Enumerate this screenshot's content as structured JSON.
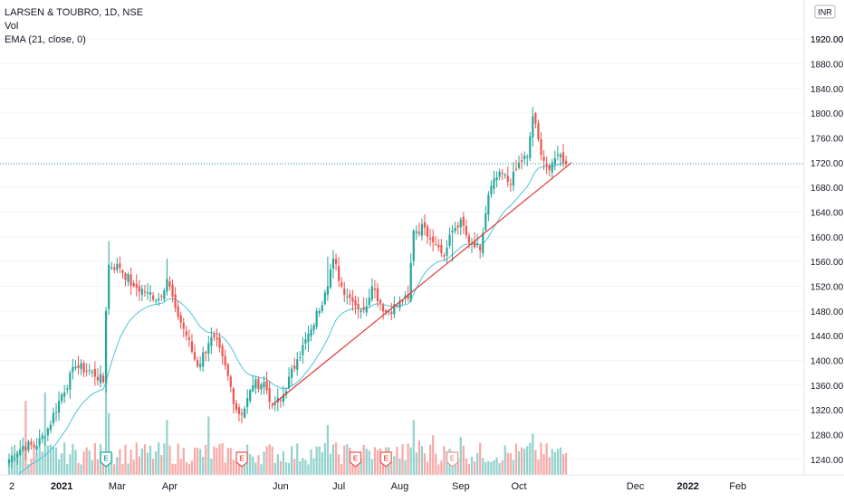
{
  "legend": {
    "title": "LARSEN & TOUBRO, 1D, NSE",
    "volume": "Vol",
    "ema": "EMA (21, close, 0)"
  },
  "currency": "INR",
  "colors": {
    "up": "#26a69a",
    "down": "#ef5350",
    "ema": "#4dc6d6",
    "trendline": "#e53935",
    "last_price_line": "#26a69a",
    "grid": "#f0f3fa",
    "axis_text": "#131722"
  },
  "chart_data": {
    "type": "candlestick",
    "symbol": "LARSEN & TOUBRO",
    "interval": "1D",
    "exchange": "NSE",
    "y_axis": {
      "range": [
        1215,
        1983
      ],
      "ticks": [
        1240,
        1280,
        1320,
        1360,
        1400,
        1440,
        1480,
        1520,
        1560,
        1600,
        1640,
        1680,
        1720,
        1760,
        1800,
        1840,
        1880,
        1920
      ],
      "tick_labels": [
        "1240.00",
        "1280.00",
        "1320.00",
        "1360.00",
        "1400.00",
        "1440.00",
        "1480.00",
        "1520.00",
        "1560.00",
        "1600.00",
        "1640.00",
        "1680.00",
        "1720.00",
        "1760.00",
        "1800.00",
        "1840.00",
        "1880.00",
        "1920.00"
      ]
    },
    "x_axis": {
      "labels": [
        "2",
        "2021",
        "Mar",
        "Apr",
        "Jun",
        "Jul",
        "Aug",
        "Sep",
        "Oct",
        "Dec",
        "2022",
        "Feb"
      ],
      "label_day_index": [
        1,
        19,
        39,
        58,
        98,
        119,
        141,
        163,
        184,
        226,
        245,
        263
      ]
    },
    "last_price": 1718.0,
    "keypoints": [
      [
        0,
        1240
      ],
      [
        5,
        1262
      ],
      [
        10,
        1262
      ],
      [
        14,
        1290
      ],
      [
        19,
        1345
      ],
      [
        24,
        1390
      ],
      [
        30,
        1382
      ],
      [
        34,
        1365
      ],
      [
        35,
        1480
      ],
      [
        36,
        1555
      ],
      [
        40,
        1550
      ],
      [
        45,
        1520
      ],
      [
        50,
        1510
      ],
      [
        54,
        1500
      ],
      [
        57,
        1532
      ],
      [
        60,
        1485
      ],
      [
        64,
        1440
      ],
      [
        68,
        1390
      ],
      [
        72,
        1428
      ],
      [
        74,
        1438
      ],
      [
        79,
        1375
      ],
      [
        82,
        1320
      ],
      [
        84,
        1312
      ],
      [
        88,
        1360
      ],
      [
        92,
        1365
      ],
      [
        95,
        1328
      ],
      [
        98,
        1335
      ],
      [
        104,
        1402
      ],
      [
        109,
        1450
      ],
      [
        114,
        1510
      ],
      [
        117,
        1565
      ],
      [
        120,
        1520
      ],
      [
        124,
        1495
      ],
      [
        128,
        1482
      ],
      [
        131,
        1520
      ],
      [
        136,
        1478
      ],
      [
        142,
        1495
      ],
      [
        144,
        1500
      ],
      [
        146,
        1610
      ],
      [
        150,
        1615
      ],
      [
        154,
        1588
      ],
      [
        157,
        1568
      ],
      [
        160,
        1610
      ],
      [
        163,
        1628
      ],
      [
        166,
        1590
      ],
      [
        170,
        1578
      ],
      [
        173,
        1668
      ],
      [
        177,
        1705
      ],
      [
        181,
        1685
      ],
      [
        184,
        1720
      ],
      [
        187,
        1730
      ],
      [
        189,
        1795
      ],
      [
        191,
        1758
      ],
      [
        193,
        1723
      ],
      [
        195,
        1708
      ],
      [
        197,
        1727
      ],
      [
        199,
        1733
      ],
      [
        201,
        1718
      ]
    ],
    "ema_period": 21,
    "trendline": {
      "from": [
        [
          95,
          1328
        ]
      ],
      "to": [
        [
          203,
          1720
        ]
      ]
    },
    "volume_spikes": [
      {
        "day": 6,
        "volume": 4.3
      },
      {
        "day": 13,
        "volume": 4.8
      },
      {
        "day": 35,
        "volume": 6.2
      },
      {
        "day": 36,
        "volume": 3.6
      },
      {
        "day": 57,
        "volume": 3.2
      },
      {
        "day": 72,
        "volume": 3.4
      },
      {
        "day": 115,
        "volume": 2.9
      },
      {
        "day": 146,
        "volume": 3.2
      },
      {
        "day": 148,
        "volume": 2.0
      },
      {
        "day": 153,
        "volume": 2.3
      },
      {
        "day": 163,
        "volume": 2.2
      },
      {
        "day": 189,
        "volume": 2.4
      }
    ],
    "events": [
      {
        "label": "E",
        "day": 35,
        "state": "reported"
      },
      {
        "label": "E",
        "day": 84,
        "state": "reported"
      },
      {
        "label": "E",
        "day": 125,
        "state": "reported"
      },
      {
        "label": "E",
        "day": 136,
        "state": "reported"
      },
      {
        "label": "E",
        "day": 160,
        "state": "upcoming"
      }
    ],
    "grid": false,
    "legend_position": "top-left"
  }
}
